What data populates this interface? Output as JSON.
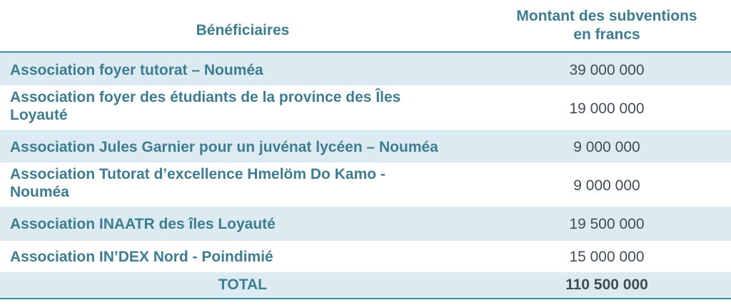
{
  "header": {
    "beneficiaries": "Bénéficiaires",
    "amount_line1": "Montant des subventions",
    "amount_line2": "en francs"
  },
  "rows": [
    {
      "name": "Association foyer tutorat – Nouméa",
      "amount": "39 000 000"
    },
    {
      "name": "Association foyer des étudiants de la province des Îles Loyauté",
      "amount": "19 000 000"
    },
    {
      "name": "Association Jules Garnier pour un juvénat lycéen – Nouméa",
      "amount": "9 000 000"
    },
    {
      "name": "Association Tutorat d’excellence Hmelöm Do Kamo - Nouméa",
      "amount": "9 000 000"
    },
    {
      "name": "Association INAATR des îles Loyauté",
      "amount": "19 500 000"
    },
    {
      "name": "Association IN’DEX Nord - Poindimié",
      "amount": "15 000 000"
    }
  ],
  "total": {
    "label": "TOTAL",
    "amount": "110 500 000"
  },
  "colors": {
    "heading": "#3e7d91",
    "shade": "#dcebf1",
    "amount_text": "#3f4e56",
    "rule": "#3e8aa0"
  }
}
